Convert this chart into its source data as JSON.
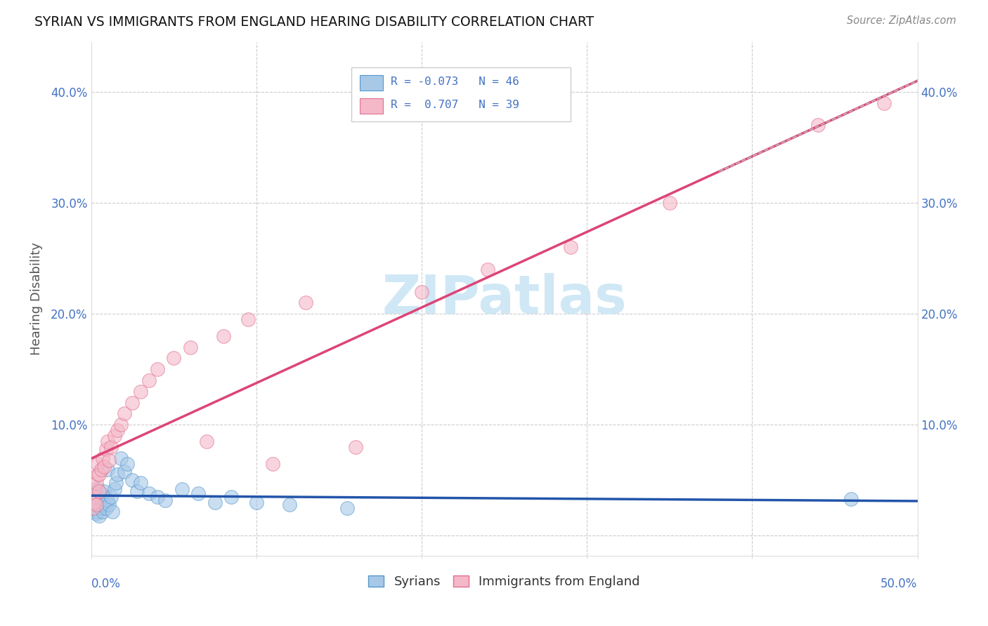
{
  "title": "SYRIAN VS IMMIGRANTS FROM ENGLAND HEARING DISABILITY CORRELATION CHART",
  "source": "Source: ZipAtlas.com",
  "ylabel": "Hearing Disability",
  "ytick_labels": [
    "",
    "10.0%",
    "20.0%",
    "30.0%",
    "40.0%"
  ],
  "ytick_values": [
    0.0,
    0.1,
    0.2,
    0.3,
    0.4
  ],
  "xlim": [
    0.0,
    0.5
  ],
  "ylim": [
    -0.018,
    0.445
  ],
  "blue_color": "#a8c8e8",
  "pink_color": "#f4b8c8",
  "blue_edge_color": "#5599cc",
  "pink_edge_color": "#e07090",
  "blue_line_color": "#2255aa",
  "pink_line_color": "#dd4477",
  "dashed_line_color": "#bbbbbb",
  "watermark": "ZIPatlas",
  "watermark_color": "#d0e8f5",
  "background_color": "#ffffff",
  "title_color": "#111111",
  "axis_color": "#4472c4",
  "grid_color": "#cccccc",
  "legend_r1": "R = -0.073",
  "legend_n1": "N = 46",
  "legend_r2": "R =  0.707",
  "legend_n2": "N = 39",
  "syrians_x": [
    0.001,
    0.001,
    0.002,
    0.002,
    0.002,
    0.003,
    0.003,
    0.003,
    0.004,
    0.004,
    0.004,
    0.005,
    0.005,
    0.005,
    0.006,
    0.006,
    0.007,
    0.007,
    0.008,
    0.008,
    0.009,
    0.01,
    0.01,
    0.011,
    0.012,
    0.013,
    0.014,
    0.015,
    0.016,
    0.018,
    0.02,
    0.022,
    0.025,
    0.028,
    0.03,
    0.035,
    0.04,
    0.045,
    0.055,
    0.065,
    0.075,
    0.085,
    0.1,
    0.12,
    0.155,
    0.46
  ],
  "syrians_y": [
    0.028,
    0.032,
    0.025,
    0.035,
    0.04,
    0.02,
    0.03,
    0.038,
    0.022,
    0.032,
    0.042,
    0.018,
    0.028,
    0.035,
    0.025,
    0.038,
    0.022,
    0.03,
    0.028,
    0.04,
    0.025,
    0.032,
    0.06,
    0.028,
    0.035,
    0.022,
    0.042,
    0.048,
    0.055,
    0.07,
    0.058,
    0.065,
    0.05,
    0.04,
    0.048,
    0.038,
    0.035,
    0.032,
    0.042,
    0.038,
    0.03,
    0.035,
    0.03,
    0.028,
    0.025,
    0.033
  ],
  "england_x": [
    0.001,
    0.001,
    0.002,
    0.002,
    0.003,
    0.003,
    0.004,
    0.004,
    0.005,
    0.005,
    0.006,
    0.007,
    0.008,
    0.009,
    0.01,
    0.011,
    0.012,
    0.014,
    0.016,
    0.018,
    0.02,
    0.025,
    0.03,
    0.035,
    0.04,
    0.05,
    0.06,
    0.07,
    0.08,
    0.095,
    0.11,
    0.13,
    0.16,
    0.2,
    0.24,
    0.29,
    0.35,
    0.44,
    0.48
  ],
  "england_y": [
    0.025,
    0.035,
    0.03,
    0.042,
    0.028,
    0.048,
    0.055,
    0.065,
    0.04,
    0.055,
    0.06,
    0.07,
    0.062,
    0.078,
    0.085,
    0.068,
    0.08,
    0.09,
    0.095,
    0.1,
    0.11,
    0.12,
    0.13,
    0.14,
    0.15,
    0.16,
    0.17,
    0.085,
    0.18,
    0.195,
    0.065,
    0.21,
    0.08,
    0.22,
    0.24,
    0.26,
    0.3,
    0.37,
    0.39
  ]
}
